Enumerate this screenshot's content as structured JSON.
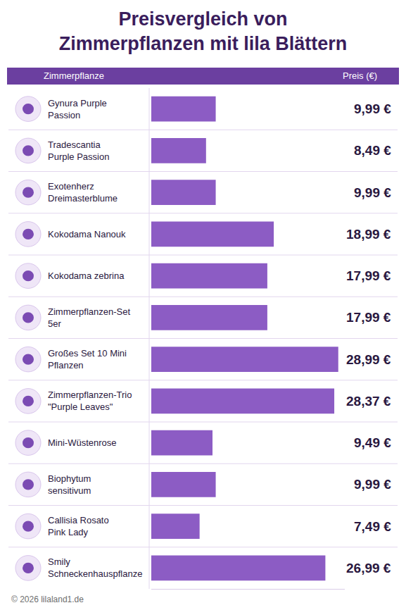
{
  "chart_data": {
    "type": "bar",
    "title": "Preisvergleich von Zimmerpflanzen mit lila Blättern",
    "column_labels": [
      "Zimmerpflanze",
      "Preis (€)"
    ],
    "orientation": "horizontal",
    "categories": [
      "Gynura Purple Passion",
      "Tradescantia Purple Passion",
      "Exotenherz Dreimasterblume",
      "Kokodama Nanouk",
      "Kokodama zebrina",
      "Zimmerpflanzen-Set 5er",
      "Großes Set 10 Mini Pflanzen",
      "Zimmerpflanzen-Trio \"Purple Leaves\"",
      "Mini-Wüstenrose",
      "Biophytum sensitivum",
      "Callisia Rosato Pink Lady",
      "Smily Schneckenhauspflanze"
    ],
    "values": [
      9.99,
      8.49,
      9.99,
      18.99,
      17.99,
      17.99,
      28.99,
      28.37,
      9.49,
      9.99,
      7.49,
      26.99
    ],
    "value_labels": [
      "9,99 €",
      "8,49 €",
      "9,99 €",
      "18,99 €",
      "17,99 €",
      "17,99 €",
      "28,99 €",
      "28,37 €",
      "9,49 €",
      "9,99 €",
      "7,49 €",
      "26,99 €"
    ],
    "color": "#8c5cc4",
    "xlim": [
      0,
      30
    ],
    "grid": false,
    "data_labels": true,
    "tick_labels": "y",
    "watermark": "© 2026 lilaland1.de"
  }
}
